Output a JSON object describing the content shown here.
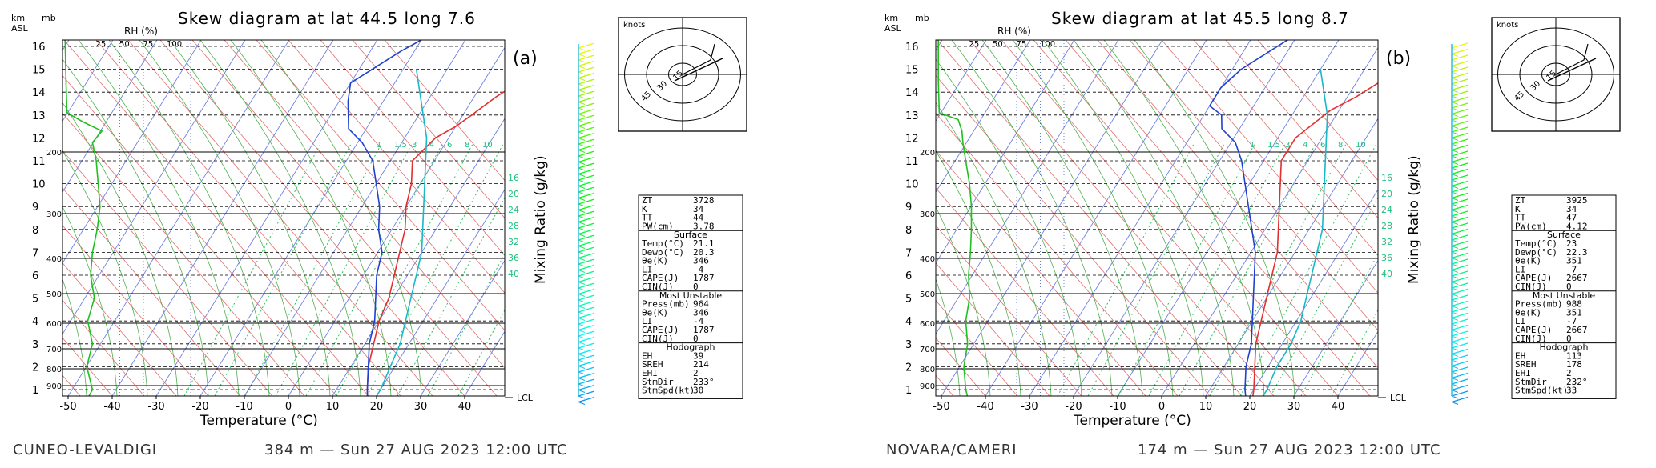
{
  "chart_data": [
    {
      "type": "skew-t",
      "panel_label": "(a)",
      "title": "Skew diagram at lat 44.5 long 7.6",
      "footer_station": "CUNEO-LEVALDIGI",
      "footer_info": "384 m — Sun 27 AUG 2023 12:00 UTC",
      "xlabel": "Temperature (°C)",
      "left_axis_units": [
        "km",
        "ASL"
      ],
      "pressure_unit": "mb",
      "rh_label": "RH (%)",
      "rh_ticks": [
        "25",
        "50",
        "75",
        "100"
      ],
      "mixing_label": "Mixing Ratio (g/kg)",
      "mixing_top_labels": [
        "1",
        "1.5",
        "3",
        "4",
        "6",
        "8",
        "10"
      ],
      "mixing_side_labels": [
        "16",
        "20",
        "24",
        "28",
        "32",
        "36",
        "40"
      ],
      "lcl_label": "LCL",
      "hodograph_unit": "knots",
      "hodograph_rings": [
        "45",
        "30",
        "15"
      ],
      "x_ticks": [
        "-50",
        "-40",
        "-30",
        "-20",
        "-10",
        "0",
        "10",
        "20",
        "30",
        "40"
      ],
      "xlim": [
        -50,
        50
      ],
      "km_ticks": [
        "1",
        "2",
        "3",
        "4",
        "5",
        "6",
        "7",
        "8",
        "9",
        "10",
        "11",
        "12",
        "13",
        "14",
        "15",
        "16"
      ],
      "pressure_ticks": [
        "900",
        "800",
        "700",
        "600",
        "500",
        "400",
        "300",
        "200"
      ],
      "series": [
        {
          "name": "Temperature",
          "color": "#e03030",
          "x": [
            19,
            17,
            14,
            12,
            10,
            9,
            7,
            5,
            3,
            0,
            -2,
            -5,
            -3,
            0,
            2,
            5,
            8,
            10,
            14,
            20
          ],
          "y": [
            0.4,
            1.0,
            2.0,
            3.0,
            4.0,
            5.0,
            6.0,
            7.0,
            8.0,
            9.0,
            10.0,
            11.0,
            12.0,
            12.5,
            13.0,
            13.8,
            14.4,
            15.0,
            15.8,
            16.6
          ]
        },
        {
          "name": "Dewpoint",
          "color": "#2040d0",
          "x": [
            19,
            17,
            14,
            11,
            9,
            6,
            3,
            1,
            -3,
            -6,
            -10,
            -14,
            -19,
            -24,
            -26,
            -28,
            -30,
            -27,
            -23,
            -18
          ],
          "y": [
            0.4,
            1.0,
            2.0,
            3.0,
            4.0,
            5.0,
            6.0,
            7.0,
            8.0,
            9.0,
            10.0,
            11.0,
            11.8,
            12.4,
            13.0,
            13.6,
            14.4,
            15.0,
            15.8,
            16.6
          ]
        },
        {
          "name": "Parcel",
          "color": "#18b8c8",
          "x": [
            20,
            20,
            19,
            18,
            16,
            14,
            12,
            10,
            7,
            4,
            1,
            -2,
            -5,
            -9,
            -13,
            -17
          ],
          "y": [
            0.4,
            1.0,
            2.0,
            3.0,
            4.0,
            5.0,
            6.0,
            7.0,
            8.0,
            9.0,
            10.0,
            11.0,
            12.0,
            13.0,
            14.0,
            15.0
          ]
        },
        {
          "name": "RH",
          "color": "#20c020",
          "rh": [
            22,
            30,
            24,
            30,
            25,
            32,
            28,
            30,
            35,
            38,
            36,
            34,
            30,
            40,
            20,
            3,
            2,
            1
          ],
          "y": [
            0.4,
            1.0,
            2.0,
            3.0,
            4.0,
            5.0,
            6.0,
            7.0,
            8.0,
            9.0,
            10.0,
            11.0,
            11.8,
            12.3,
            12.7,
            13.1,
            14.5,
            16.4
          ]
        }
      ],
      "indices": [
        {
          "label": "ZT",
          "value": "3728"
        },
        {
          "label": "K",
          "value": "34"
        },
        {
          "label": "TT",
          "value": "44"
        },
        {
          "label": "PW(cm)",
          "value": "3.78"
        },
        {
          "header": "Surface"
        },
        {
          "label": "Temp(°C)",
          "value": "21.1"
        },
        {
          "label": "Dewp(°C)",
          "value": "20.3"
        },
        {
          "label": "θe(K)",
          "value": "346"
        },
        {
          "label": "LI",
          "value": "-4"
        },
        {
          "label": "CAPE(J)",
          "value": "1787"
        },
        {
          "label": "CIN(J)",
          "value": "0"
        },
        {
          "header": "Most Unstable"
        },
        {
          "label": "Press(mb)",
          "value": "964"
        },
        {
          "label": "θe(K)",
          "value": "346"
        },
        {
          "label": "LI",
          "value": "-4"
        },
        {
          "label": "CAPE(J)",
          "value": "1787"
        },
        {
          "label": "CIN(J)",
          "value": "0"
        },
        {
          "header": "Hodograph"
        },
        {
          "label": "EH",
          "value": "39"
        },
        {
          "label": "SREH",
          "value": "214"
        },
        {
          "label": "EHI",
          "value": "2"
        },
        {
          "label": "StmDir",
          "value": "233°"
        },
        {
          "label": "StmSpd(kt)",
          "value": "30"
        }
      ]
    },
    {
      "type": "skew-t",
      "panel_label": "(b)",
      "title": "Skew diagram at lat 45.5 long 8.7",
      "footer_station": "NOVARA/CAMERI",
      "footer_info": "174 m — Sun 27 AUG 2023 12:00 UTC",
      "xlabel": "Temperature (°C)",
      "left_axis_units": [
        "km",
        "ASL"
      ],
      "pressure_unit": "mb",
      "rh_label": "RH (%)",
      "rh_ticks": [
        "25",
        "50",
        "75",
        "100"
      ],
      "mixing_label": "Mixing Ratio (g/kg)",
      "mixing_top_labels": [
        "1",
        "1.5",
        "3",
        "4",
        "6",
        "8",
        "10"
      ],
      "mixing_side_labels": [
        "16",
        "20",
        "24",
        "28",
        "32",
        "36",
        "40"
      ],
      "lcl_label": "LCL",
      "hodograph_unit": "knots",
      "hodograph_rings": [
        "45",
        "30",
        "15"
      ],
      "x_ticks": [
        "-50",
        "-40",
        "-30",
        "-20",
        "-10",
        "0",
        "10",
        "20",
        "30",
        "40"
      ],
      "xlim": [
        -50,
        50
      ],
      "km_ticks": [
        "1",
        "2",
        "3",
        "4",
        "5",
        "6",
        "7",
        "8",
        "9",
        "10",
        "11",
        "12",
        "13",
        "14",
        "15",
        "16"
      ],
      "pressure_ticks": [
        "900",
        "800",
        "700",
        "600",
        "500",
        "400",
        "300",
        "200"
      ],
      "series": [
        {
          "name": "Temperature",
          "color": "#e03030",
          "x": [
            22,
            20,
            17,
            14,
            12,
            10,
            8,
            6,
            3,
            0,
            -3,
            -6,
            -6,
            -4,
            -2,
            2,
            5,
            8,
            12,
            17
          ],
          "y": [
            0.2,
            1.0,
            2.0,
            3.0,
            4.0,
            5.0,
            6.0,
            7.0,
            8.0,
            9.0,
            10.0,
            11.0,
            12.0,
            12.6,
            13.2,
            13.8,
            14.4,
            15.0,
            15.6,
            16.6
          ]
        },
        {
          "name": "Dewpoint",
          "color": "#2040d0",
          "x": [
            21,
            18,
            15,
            13,
            10,
            7,
            4,
            1,
            -3,
            -7,
            -11,
            -15,
            -19,
            -24,
            -26,
            -30,
            -30,
            -28,
            -24,
            -20
          ],
          "y": [
            0.2,
            1.0,
            2.0,
            3.0,
            4.0,
            5.0,
            6.0,
            7.0,
            8.0,
            9.0,
            10.0,
            11.0,
            11.8,
            12.4,
            13.0,
            13.4,
            14.2,
            15.0,
            15.8,
            16.6
          ]
        },
        {
          "name": "Parcel",
          "color": "#18b8c8",
          "x": [
            23,
            23,
            22,
            22,
            21,
            19,
            17,
            15,
            13,
            10,
            7,
            4,
            1,
            -2,
            -6,
            -10
          ],
          "y": [
            0.2,
            1.0,
            2.0,
            3.0,
            4.0,
            5.0,
            6.0,
            7.0,
            8.0,
            9.0,
            10.0,
            11.0,
            12.0,
            13.0,
            14.0,
            15.0
          ]
        },
        {
          "name": "RH",
          "color": "#20c020",
          "rh": [
            35,
            30,
            28,
            32,
            30,
            34,
            33,
            35,
            36,
            36,
            34,
            30,
            27,
            26,
            22,
            2,
            1,
            1
          ],
          "y": [
            0.2,
            1.0,
            2.0,
            3.0,
            4.0,
            5.0,
            6.0,
            7.0,
            8.0,
            9.0,
            10.0,
            11.0,
            11.8,
            12.3,
            12.8,
            13.1,
            14.5,
            16.4
          ]
        }
      ],
      "indices": [
        {
          "label": "ZT",
          "value": "3925"
        },
        {
          "label": "K",
          "value": "34"
        },
        {
          "label": "TT",
          "value": "47"
        },
        {
          "label": "PW(cm)",
          "value": "4.12"
        },
        {
          "header": "Surface"
        },
        {
          "label": "Temp(°C)",
          "value": "23"
        },
        {
          "label": "Dewp(°C)",
          "value": "22.3"
        },
        {
          "label": "θe(K)",
          "value": "351"
        },
        {
          "label": "LI",
          "value": "-7"
        },
        {
          "label": "CAPE(J)",
          "value": "2667"
        },
        {
          "label": "CIN(J)",
          "value": "0"
        },
        {
          "header": "Most Unstable"
        },
        {
          "label": "Press(mb)",
          "value": "988"
        },
        {
          "label": "θe(K)",
          "value": "351"
        },
        {
          "label": "LI",
          "value": "-7"
        },
        {
          "label": "CAPE(J)",
          "value": "2667"
        },
        {
          "label": "CIN(J)",
          "value": "0"
        },
        {
          "header": "Hodograph"
        },
        {
          "label": "EH",
          "value": "113"
        },
        {
          "label": "SREH",
          "value": "178"
        },
        {
          "label": "EHI",
          "value": "2"
        },
        {
          "label": "StmDir",
          "value": "232°"
        },
        {
          "label": "StmSpd(kt)",
          "value": "33"
        }
      ]
    }
  ]
}
